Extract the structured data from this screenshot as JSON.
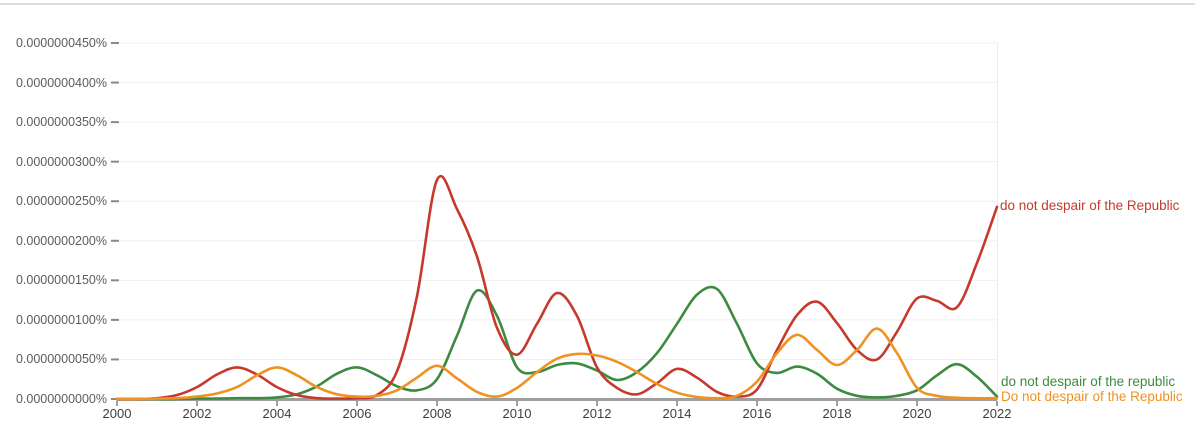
{
  "page": {
    "background": "#ffffff"
  },
  "chart_data": {
    "type": "line",
    "title": "",
    "grid": true,
    "legend_position": "right-end-of-lines",
    "values_unit_note": "series values are in units of 0.0000000001% (1e-10 percent), as read from the y-axis",
    "y_axis": {
      "tick_values": [
        450,
        400,
        350,
        300,
        250,
        200,
        150,
        100,
        50,
        0
      ],
      "tick_labels": [
        "0.0000000450%",
        "0.0000000400%",
        "0.0000000350%",
        "0.0000000300%",
        "0.0000000250%",
        "0.0000000200%",
        "0.0000000150%",
        "0.0000000100%",
        "0.0000000050%",
        "0.0000000000%"
      ],
      "range": [
        0,
        450
      ]
    },
    "x_axis": {
      "tick_values": [
        2000,
        2002,
        2004,
        2006,
        2008,
        2010,
        2012,
        2014,
        2016,
        2018,
        2020,
        2022
      ],
      "tick_labels": [
        "2000",
        "2002",
        "2004",
        "2006",
        "2008",
        "2010",
        "2012",
        "2014",
        "2016",
        "2018",
        "2020",
        "2022"
      ],
      "range": [
        2000,
        2022
      ]
    },
    "x": [
      2000,
      2000.5,
      2001,
      2001.5,
      2002,
      2002.5,
      2003,
      2003.5,
      2004,
      2004.5,
      2005,
      2005.5,
      2006,
      2006.5,
      2007,
      2007.5,
      2008,
      2008.5,
      2009,
      2009.5,
      2010,
      2010.5,
      2011,
      2011.5,
      2012,
      2012.5,
      2013,
      2013.5,
      2014,
      2014.5,
      2015,
      2015.5,
      2016,
      2016.5,
      2017,
      2017.5,
      2018,
      2018.5,
      2019,
      2019.5,
      2020,
      2020.5,
      2021,
      2021.5,
      2022
    ],
    "series": [
      {
        "name": "do not despair of the republic",
        "color": "#3d8b40",
        "values": [
          0,
          0,
          0,
          0,
          0.5,
          0.5,
          1,
          1,
          2,
          6,
          16,
          32,
          40,
          30,
          16,
          11,
          25,
          80,
          137,
          105,
          40,
          34,
          43,
          45,
          36,
          24,
          34,
          58,
          95,
          132,
          139,
          95,
          45,
          33,
          41,
          32,
          13,
          4,
          2,
          4,
          11,
          30,
          44,
          28,
          3
        ]
      },
      {
        "name": "do not despair of the Republic",
        "color": "#c53a2c",
        "values": [
          0,
          0,
          1,
          5,
          15,
          31,
          40,
          31,
          15,
          5,
          1,
          0.5,
          1,
          5,
          35,
          130,
          277,
          240,
          180,
          90,
          56,
          95,
          134,
          105,
          40,
          14,
          6,
          20,
          38,
          27,
          9,
          3,
          12,
          62,
          106,
          123,
          96,
          62,
          50,
          85,
          127,
          124,
          116,
          172,
          243
        ]
      },
      {
        "name": "Do not despair of the Republic",
        "color": "#ef9223",
        "values": [
          0,
          0,
          0.5,
          1,
          3,
          7,
          15,
          30,
          40,
          30,
          15,
          6,
          3,
          4,
          11,
          27,
          42,
          26,
          9,
          3,
          14,
          34,
          51,
          57,
          55,
          47,
          34,
          19,
          8,
          2.5,
          1,
          4,
          22,
          58,
          81,
          62,
          43,
          62,
          89,
          58,
          14,
          4,
          1.5,
          1,
          1
        ]
      }
    ],
    "colors": {
      "axis": "#9e9e9e",
      "gridline": "#f0f0f0",
      "plot_right_border": "#ececec",
      "y_label_text": "#5c5c5c",
      "x_label_text": "#3f3f3f",
      "top_divider": "#dcdcdc"
    }
  }
}
